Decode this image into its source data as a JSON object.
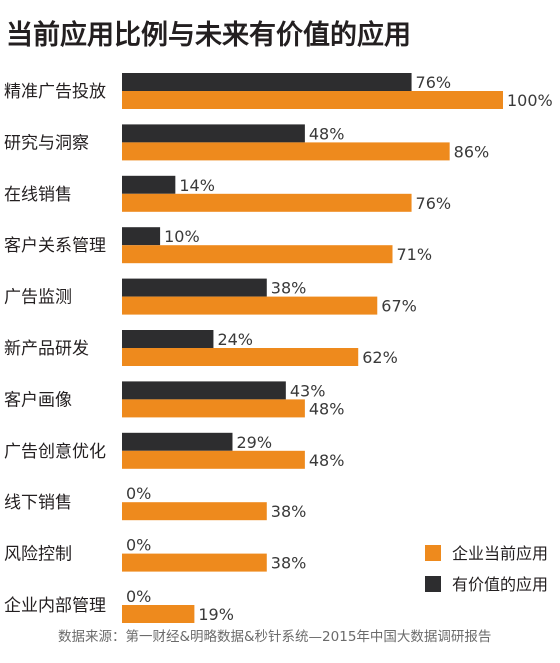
{
  "chart_data": {
    "type": "bar",
    "orientation": "horizontal",
    "title": "当前应用比例与未来有价值的应用",
    "categories": [
      "精准广告投放",
      "研究与洞察",
      "在线销售",
      "客户关系管理",
      "广告监测",
      "新产品研发",
      "客户画像",
      "广告创意优化",
      "线下销售",
      "风险控制",
      "企业内部管理"
    ],
    "series": [
      {
        "name": "有价值的应用",
        "color": "#2d2d2f",
        "values": [
          76,
          48,
          14,
          10,
          38,
          24,
          43,
          29,
          0,
          0,
          0
        ]
      },
      {
        "name": "企业当前应用",
        "color": "#ee8a1d",
        "values": [
          100,
          86,
          76,
          71,
          67,
          62,
          48,
          48,
          38,
          38,
          19
        ]
      }
    ],
    "value_suffix": "%",
    "xlim": [
      0,
      100
    ],
    "legend_position": "bottom-right",
    "legend_order": [
      "企业当前应用",
      "有价值的应用"
    ],
    "grid": false
  },
  "source": "数据来源：第一财经&明略数据&秒针系统—2015年中国大数据调研报告"
}
